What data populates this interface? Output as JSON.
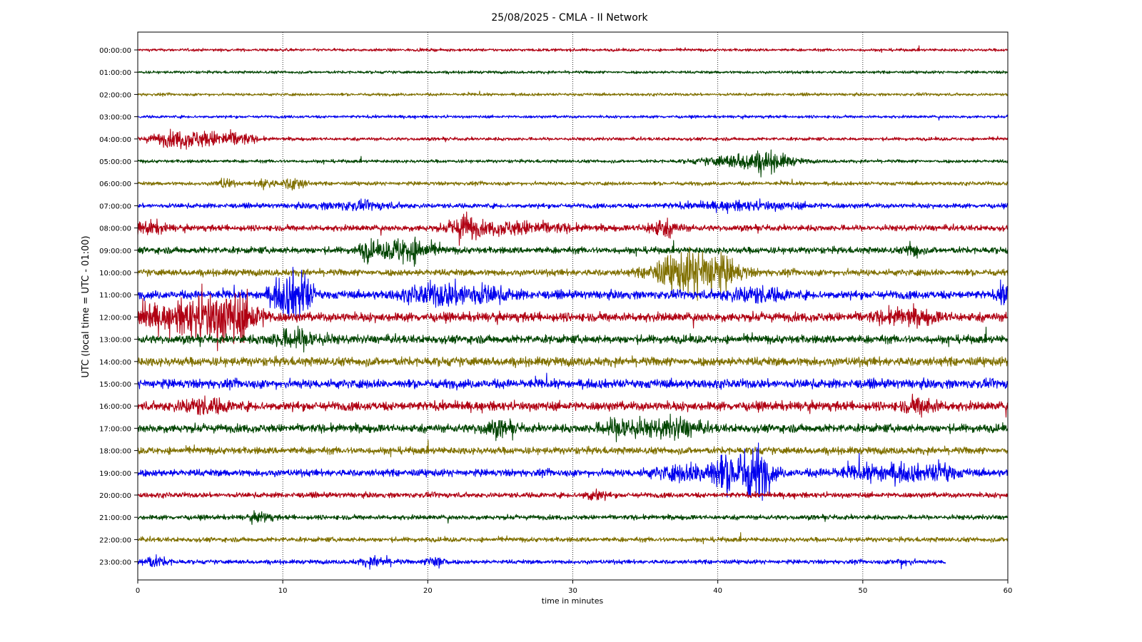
{
  "chart_data": {
    "type": "line",
    "title": "25/08/2025 - CMLA - II Network",
    "xlabel": "time in minutes",
    "ylabel": "UTC (local time = UTC - 01:00)",
    "xlim": [
      0,
      60
    ],
    "xticks": [
      "0",
      "10",
      "20",
      "30",
      "40",
      "50",
      "60"
    ],
    "grid": "vertical dotted lines at x ticks",
    "series_colors": [
      "#b00012",
      "#004400",
      "#807000",
      "#0000ee"
    ],
    "rows": [
      {
        "label": "00:00:00",
        "color": "#b00012",
        "end": 60,
        "amp": 0.12,
        "bursts": []
      },
      {
        "label": "01:00:00",
        "color": "#004400",
        "end": 60,
        "amp": 0.12,
        "bursts": []
      },
      {
        "label": "02:00:00",
        "color": "#807000",
        "end": 60,
        "amp": 0.12,
        "bursts": []
      },
      {
        "label": "03:00:00",
        "color": "#0000ee",
        "end": 60,
        "amp": 0.12,
        "bursts": []
      },
      {
        "label": "04:00:00",
        "color": "#b00012",
        "end": 60,
        "amp": 0.14,
        "bursts": [
          {
            "t": 2.5,
            "w": 1.2,
            "a": 0.55
          },
          {
            "t": 5,
            "w": 1.3,
            "a": 0.5
          },
          {
            "t": 7,
            "w": 0.8,
            "a": 0.35
          }
        ]
      },
      {
        "label": "05:00:00",
        "color": "#004400",
        "end": 60,
        "amp": 0.14,
        "bursts": [
          {
            "t": 41.5,
            "w": 1.8,
            "a": 0.45
          },
          {
            "t": 43.5,
            "w": 1.2,
            "a": 0.55
          }
        ]
      },
      {
        "label": "06:00:00",
        "color": "#807000",
        "end": 60,
        "amp": 0.16,
        "bursts": [
          {
            "t": 6,
            "w": 0.4,
            "a": 0.4
          },
          {
            "t": 8.8,
            "w": 0.4,
            "a": 0.45
          },
          {
            "t": 10.8,
            "w": 0.5,
            "a": 0.55
          }
        ]
      },
      {
        "label": "07:00:00",
        "color": "#0000ee",
        "end": 60,
        "amp": 0.2,
        "bursts": [
          {
            "t": 15,
            "w": 2,
            "a": 0.25
          },
          {
            "t": 42,
            "w": 3,
            "a": 0.25
          }
        ]
      },
      {
        "label": "08:00:00",
        "color": "#b00012",
        "end": 60,
        "amp": 0.25,
        "bursts": [
          {
            "t": 0.8,
            "w": 0.8,
            "a": 0.45
          },
          {
            "t": 22.5,
            "w": 0.6,
            "a": 1.0
          },
          {
            "t": 26,
            "w": 2.5,
            "a": 0.45
          },
          {
            "t": 36.2,
            "w": 0.8,
            "a": 0.6
          }
        ]
      },
      {
        "label": "09:00:00",
        "color": "#004400",
        "end": 60,
        "amp": 0.28,
        "bursts": [
          {
            "t": 15.8,
            "w": 0.4,
            "a": 0.7
          },
          {
            "t": 18.5,
            "w": 1.2,
            "a": 1.0
          },
          {
            "t": 53.5,
            "w": 0.3,
            "a": 0.7
          }
        ]
      },
      {
        "label": "10:00:00",
        "color": "#807000",
        "end": 60,
        "amp": 0.28,
        "bursts": [
          {
            "t": 37,
            "w": 1.2,
            "a": 1.2
          },
          {
            "t": 39,
            "w": 1.0,
            "a": 1.3
          },
          {
            "t": 40.5,
            "w": 1.0,
            "a": 0.8
          }
        ]
      },
      {
        "label": "11:00:00",
        "color": "#0000ee",
        "end": 60,
        "amp": 0.35,
        "bursts": [
          {
            "t": 10.3,
            "w": 0.8,
            "a": 1.5
          },
          {
            "t": 11.4,
            "w": 0.5,
            "a": 1.3
          },
          {
            "t": 20.5,
            "w": 1.5,
            "a": 0.7
          },
          {
            "t": 23.5,
            "w": 1.5,
            "a": 0.6
          },
          {
            "t": 42.5,
            "w": 1.5,
            "a": 0.5
          },
          {
            "t": 59.8,
            "w": 0.3,
            "a": 0.9
          }
        ]
      },
      {
        "label": "12:00:00",
        "color": "#b00012",
        "end": 60,
        "amp": 0.38,
        "bursts": [
          {
            "t": 0.5,
            "w": 1.0,
            "a": 0.8
          },
          {
            "t": 3.5,
            "w": 1.2,
            "a": 1.0
          },
          {
            "t": 5.5,
            "w": 1.2,
            "a": 1.4
          },
          {
            "t": 7.2,
            "w": 1.0,
            "a": 1.2
          },
          {
            "t": 53,
            "w": 1.5,
            "a": 0.5
          }
        ]
      },
      {
        "label": "13:00:00",
        "color": "#004400",
        "end": 60,
        "amp": 0.35,
        "bursts": [
          {
            "t": 11,
            "w": 1.2,
            "a": 0.7
          }
        ]
      },
      {
        "label": "14:00:00",
        "color": "#807000",
        "end": 60,
        "amp": 0.38,
        "bursts": []
      },
      {
        "label": "15:00:00",
        "color": "#0000ee",
        "end": 60,
        "amp": 0.38,
        "bursts": []
      },
      {
        "label": "16:00:00",
        "color": "#b00012",
        "end": 60,
        "amp": 0.38,
        "bursts": [
          {
            "t": 4.5,
            "w": 1.2,
            "a": 0.5
          },
          {
            "t": 54,
            "w": 0.8,
            "a": 0.55
          }
        ]
      },
      {
        "label": "17:00:00",
        "color": "#004400",
        "end": 60,
        "amp": 0.35,
        "bursts": [
          {
            "t": 24.8,
            "w": 0.8,
            "a": 0.5
          },
          {
            "t": 33.5,
            "w": 1.0,
            "a": 0.8
          },
          {
            "t": 37,
            "w": 1.2,
            "a": 0.7
          }
        ]
      },
      {
        "label": "18:00:00",
        "color": "#807000",
        "end": 60,
        "amp": 0.3,
        "bursts": []
      },
      {
        "label": "19:00:00",
        "color": "#0000ee",
        "end": 60,
        "amp": 0.3,
        "bursts": [
          {
            "t": 37.5,
            "w": 1.5,
            "a": 0.5
          },
          {
            "t": 41.2,
            "w": 1.4,
            "a": 1.6
          },
          {
            "t": 42.8,
            "w": 0.6,
            "a": 1.3
          },
          {
            "t": 52,
            "w": 2.5,
            "a": 0.6
          },
          {
            "t": 55.5,
            "w": 0.5,
            "a": 0.6
          }
        ]
      },
      {
        "label": "20:00:00",
        "color": "#b00012",
        "end": 60,
        "amp": 0.22,
        "bursts": [
          {
            "t": 31.5,
            "w": 0.5,
            "a": 0.4
          }
        ]
      },
      {
        "label": "21:00:00",
        "color": "#004400",
        "end": 60,
        "amp": 0.2,
        "bursts": [
          {
            "t": 8.5,
            "w": 0.5,
            "a": 0.35
          }
        ]
      },
      {
        "label": "22:00:00",
        "color": "#807000",
        "end": 60,
        "amp": 0.2,
        "bursts": []
      },
      {
        "label": "23:00:00",
        "color": "#0000ee",
        "end": 55.7,
        "amp": 0.18,
        "bursts": [
          {
            "t": 1,
            "w": 0.8,
            "a": 0.4
          },
          {
            "t": 16.5,
            "w": 0.8,
            "a": 0.35
          },
          {
            "t": 20.6,
            "w": 0.4,
            "a": 0.7
          },
          {
            "t": 52.8,
            "w": 0.4,
            "a": 0.3
          }
        ]
      }
    ]
  }
}
